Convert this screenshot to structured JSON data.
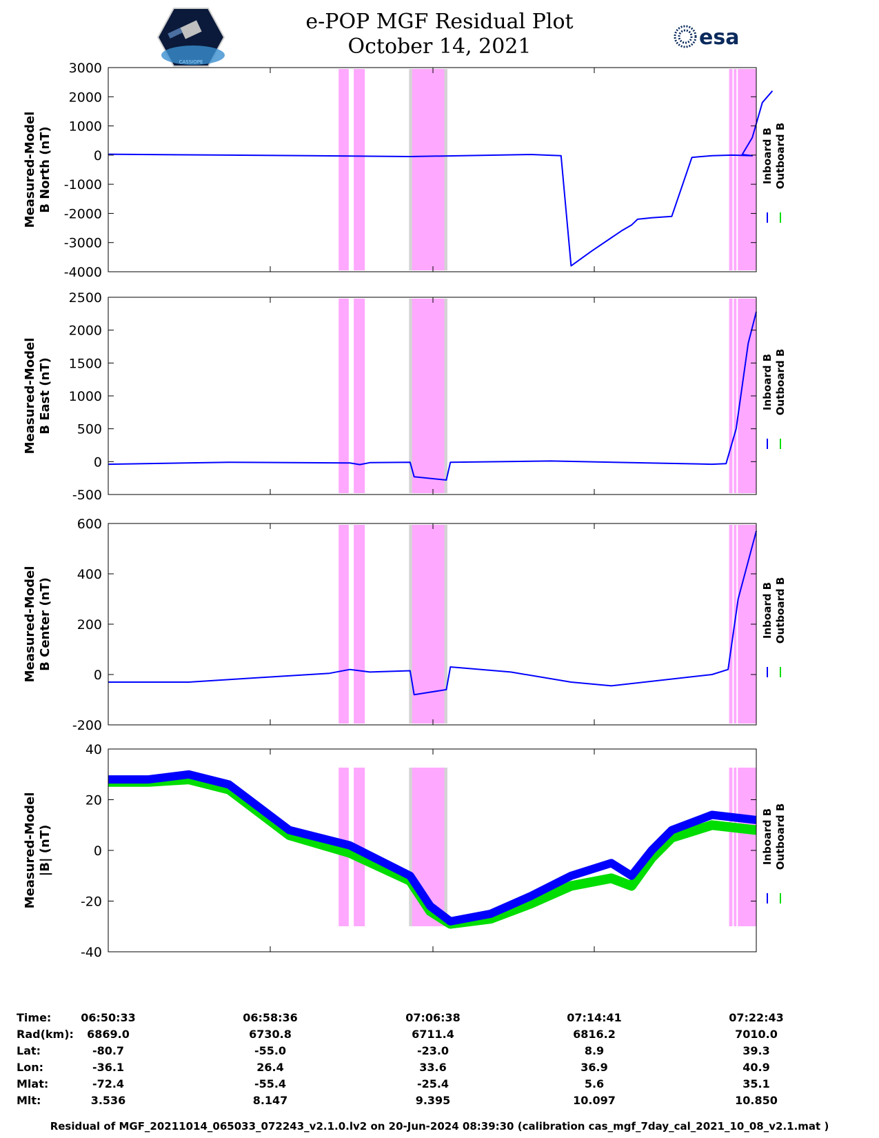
{
  "header": {
    "title_line1": "e-POP MGF Residual Plot",
    "title_line2": "October 14, 2021",
    "esa_logo_text": "esa",
    "cassiope_logo_text": "CASSIOPE"
  },
  "legend": {
    "inboard": "Inboard B",
    "outboard": "Outboard B"
  },
  "colors": {
    "inboard": "#0000ff",
    "outboard": "#00dd00",
    "highlight": "#ffa8ff",
    "gray_band": "#d3d3d3"
  },
  "chart_data": [
    {
      "type": "line",
      "ylabel_line1": "Measured-Model",
      "ylabel_line2": "B North (nT)",
      "ylim": [
        -4000,
        3000
      ],
      "yticks": [
        "3000",
        "2000",
        "1000",
        "0",
        "-1000",
        "-2000",
        "-3000",
        "-4000"
      ],
      "series": [
        {
          "name": "Inboard B",
          "x": [
            0,
            6,
            10,
            15,
            21,
            22.5,
            23,
            24,
            25.5,
            26,
            26.3,
            27,
            28,
            29,
            30,
            31,
            32,
            31.5,
            32,
            32.5,
            33
          ],
          "y": [
            30,
            0,
            -20,
            -50,
            20,
            -20,
            -3800,
            -3300,
            -2600,
            -2400,
            -2200,
            -2150,
            -2100,
            -80,
            -20,
            0,
            -20,
            20,
            600,
            1800,
            2200
          ]
        }
      ],
      "highlight_ranges": [
        [
          11.45,
          11.95
        ],
        [
          12.2,
          12.75
        ],
        [
          14.95,
          16.85
        ],
        [
          30.85,
          32.2
        ]
      ],
      "gray_ranges": [
        [
          14.95,
          15.1
        ],
        [
          16.7,
          16.85
        ]
      ]
    },
    {
      "type": "line",
      "ylabel_line1": "Measured-Model",
      "ylabel_line2": "B East (nT)",
      "ylim": [
        -500,
        2500
      ],
      "yticks": [
        "2500",
        "2000",
        "1500",
        "1000",
        "500",
        "0",
        "-500"
      ],
      "series": [
        {
          "name": "Inboard B",
          "x": [
            0,
            6,
            12,
            12.5,
            13,
            15,
            15.2,
            16.8,
            17,
            22,
            30,
            30.7,
            31.2,
            31.8,
            32.2
          ],
          "y": [
            -40,
            -10,
            -20,
            -45,
            -15,
            -10,
            -230,
            -280,
            -10,
            10,
            -40,
            -30,
            500,
            1800,
            2280
          ]
        }
      ],
      "highlight_ranges": [
        [
          11.45,
          11.95
        ],
        [
          12.2,
          12.75
        ],
        [
          14.95,
          16.85
        ],
        [
          30.85,
          32.2
        ]
      ],
      "gray_ranges": [
        [
          14.95,
          15.1
        ],
        [
          16.7,
          16.85
        ]
      ]
    },
    {
      "type": "line",
      "ylabel_line1": "Measured-Model",
      "ylabel_line2": "B Center (nT)",
      "ylim": [
        -200,
        600
      ],
      "yticks": [
        "600",
        "400",
        "200",
        "0",
        "-200"
      ],
      "series": [
        {
          "name": "Inboard B",
          "x": [
            0,
            4,
            8,
            11,
            12,
            13,
            15,
            15.2,
            16.8,
            17,
            20,
            23,
            25,
            30,
            30.8,
            31.3,
            32.2
          ],
          "y": [
            -30,
            -30,
            -10,
            5,
            20,
            10,
            15,
            -80,
            -60,
            30,
            10,
            -30,
            -45,
            0,
            20,
            300,
            570
          ]
        }
      ],
      "highlight_ranges": [
        [
          11.45,
          11.95
        ],
        [
          12.2,
          12.75
        ],
        [
          14.95,
          16.85
        ],
        [
          30.85,
          32.2
        ]
      ],
      "gray_ranges": [
        [
          14.95,
          15.1
        ],
        [
          16.7,
          16.85
        ]
      ]
    },
    {
      "type": "line",
      "ylabel_line1": "Measured-Model",
      "ylabel_line2": "|B| (nT)",
      "ylim": [
        -40,
        40
      ],
      "yticks": [
        "40",
        "20",
        "0",
        "-20",
        "-40"
      ],
      "series": [
        {
          "name": "Inboard B",
          "x": [
            0,
            2,
            4,
            6,
            9,
            12,
            15,
            16,
            17,
            19,
            21,
            23,
            25,
            26,
            27,
            28,
            30,
            32.2
          ],
          "y": [
            28,
            28,
            30,
            26,
            8,
            2,
            -10,
            -22,
            -28,
            -25,
            -18,
            -10,
            -5,
            -10,
            0,
            8,
            14,
            12
          ]
        },
        {
          "name": "Outboard B",
          "x": [
            0,
            2,
            4,
            6,
            9,
            12,
            15,
            16,
            17,
            19,
            21,
            23,
            25,
            26,
            27,
            28,
            30,
            32.2
          ],
          "y": [
            27,
            27,
            28,
            24,
            6,
            -1,
            -12,
            -24,
            -29,
            -27,
            -21,
            -14,
            -11,
            -14,
            -3,
            5,
            10,
            8
          ]
        }
      ],
      "highlight_ranges": [
        [
          11.45,
          11.95
        ],
        [
          12.2,
          12.75
        ],
        [
          14.95,
          16.85
        ],
        [
          30.85,
          32.2
        ]
      ],
      "gray_ranges": [
        [
          14.95,
          15.1
        ],
        [
          16.7,
          16.85
        ]
      ]
    }
  ],
  "ephemeris": {
    "labels": [
      "Time:",
      "Rad(km):",
      "Lat:",
      "Lon:",
      "Mlat:",
      "Mlt:"
    ],
    "columns": [
      [
        "06:50:33",
        "6869.0",
        "-80.7",
        "-36.1",
        "-72.4",
        "3.536"
      ],
      [
        "06:58:36",
        "6730.8",
        "-55.0",
        "26.4",
        "-55.4",
        "8.147"
      ],
      [
        "07:06:38",
        "6711.4",
        "-23.0",
        "33.6",
        "-25.4",
        "9.395"
      ],
      [
        "07:14:41",
        "6816.2",
        "8.9",
        "36.9",
        "5.6",
        "10.097"
      ],
      [
        "07:22:43",
        "7010.0",
        "39.3",
        "40.9",
        "35.1",
        "10.850"
      ]
    ]
  },
  "footer": "Residual of MGF_20211014_065033_072243_v2.1.0.lv2 on 20-Jun-2024 08:39:30 (calibration cas_mgf_7day_cal_2021_10_08_v2.1.mat )"
}
